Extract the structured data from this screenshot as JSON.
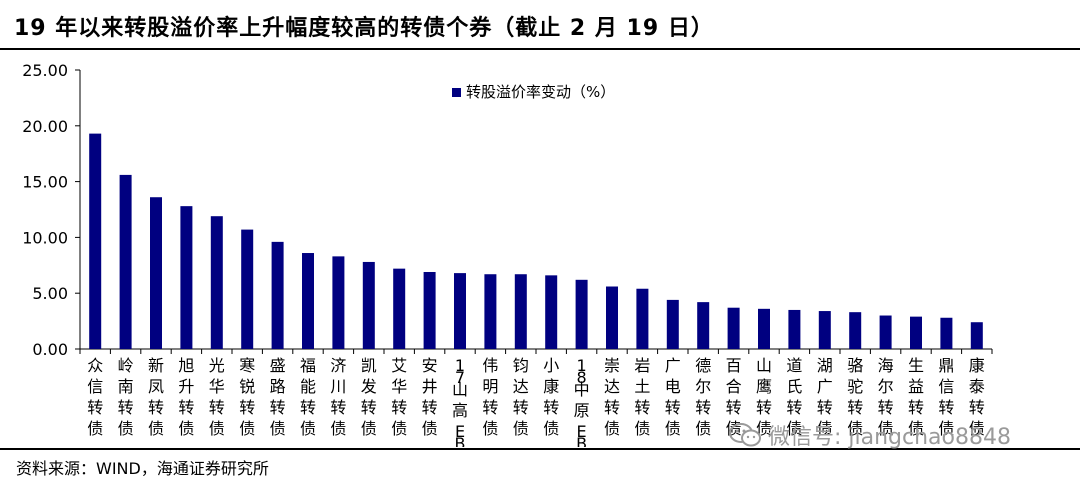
{
  "title": "19 年以来转股溢价率上升幅度较高的转债个券（截止 2 月 19 日）",
  "source": "资料来源：WIND，海通证券研究所",
  "watermark": "微信号: jiangchao8848",
  "chart_data": {
    "type": "bar",
    "title": "",
    "xlabel": "",
    "ylabel": "",
    "ylim": [
      0,
      25
    ],
    "yticks": [
      "0.00",
      "5.00",
      "10.00",
      "15.00",
      "20.00",
      "25.00"
    ],
    "grid": false,
    "legend_position": "top-center",
    "bar_color": "#000080",
    "categories": [
      "众信转债",
      "岭南转债",
      "新凤转债",
      "旭升转债",
      "光华转债",
      "寒锐转债",
      "盛路转债",
      "福能转债",
      "济川转债",
      "凯发转债",
      "艾华转债",
      "安井转债",
      "17山高EB",
      "伟明转债",
      "钧达转债",
      "小康转债",
      "18中原EB",
      "崇达转债",
      "岩土转债",
      "广电转债",
      "德尔转债",
      "百合转债",
      "山鹰转债",
      "道氏转债",
      "湖广转债",
      "骆驼转债",
      "海尔转债",
      "生益转债",
      "鼎信转债",
      "康泰转债"
    ],
    "series": [
      {
        "name": "转股溢价率变动（%）",
        "values": [
          19.3,
          15.6,
          13.6,
          12.8,
          11.9,
          10.7,
          9.6,
          8.6,
          8.3,
          7.8,
          7.2,
          6.9,
          6.8,
          6.7,
          6.7,
          6.6,
          6.2,
          5.6,
          5.4,
          4.4,
          4.2,
          3.7,
          3.6,
          3.5,
          3.4,
          3.3,
          3.0,
          2.9,
          2.8,
          2.4
        ]
      }
    ]
  }
}
